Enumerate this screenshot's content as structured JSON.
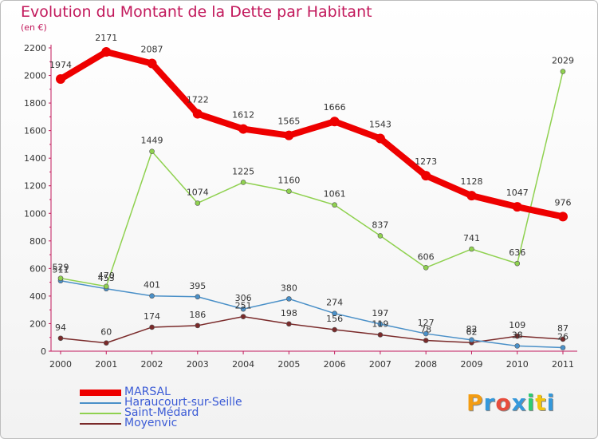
{
  "header": {
    "title": "Evolution du Montant de la Dette par Habitant",
    "unit": "(en €)"
  },
  "logo": {
    "text": "Proxiti",
    "colors": [
      "#f39c12",
      "#3498db",
      "#e74c3c",
      "#3498db",
      "#2ecc71",
      "#f1c40f",
      "#3498db"
    ]
  },
  "chart_data": {
    "type": "line",
    "title": "Evolution du Montant de la Dette par Habitant",
    "ylabel": "(en €)",
    "xlabel": "",
    "ylim": [
      0,
      2200
    ],
    "yticks": [
      0,
      200,
      400,
      600,
      800,
      1000,
      1200,
      1400,
      1600,
      1800,
      2000,
      2200
    ],
    "x": [
      "2000",
      "2001",
      "2002",
      "2003",
      "2004",
      "2005",
      "2006",
      "2007",
      "2008",
      "2009",
      "2010",
      "2011"
    ],
    "grid": false,
    "legend_position": "bottom-left",
    "series": [
      {
        "name": "MARSAL",
        "color": "#ee0000",
        "values": [
          1974,
          2171,
          2087,
          1722,
          1612,
          1565,
          1666,
          1543,
          1273,
          1128,
          1047,
          976
        ],
        "labels": [
          "1974",
          "2171",
          "2087",
          "1722",
          "1612",
          "1565",
          "1666",
          "1543",
          "1273",
          "1128",
          "1047",
          "976"
        ]
      },
      {
        "name": "Haraucourt-sur-Seille",
        "color": "#4a90c8",
        "values": [
          511,
          453,
          401,
          395,
          306,
          380,
          274,
          197,
          127,
          82,
          38,
          26
        ],
        "labels": [
          "511",
          "453",
          "401",
          "395",
          "306",
          "380",
          "274",
          "197",
          "127",
          "82",
          "38",
          "26"
        ]
      },
      {
        "name": "Saint-Médard",
        "color": "#8fd14f",
        "values": [
          529,
          470,
          1449,
          1074,
          1225,
          1160,
          1061,
          837,
          606,
          741,
          636,
          2029
        ],
        "labels": [
          "529",
          "470",
          "1449",
          "1074",
          "1225",
          "1160",
          "1061",
          "837",
          "606",
          "741",
          "636",
          "2029"
        ]
      },
      {
        "name": "Moyenvic",
        "color": "#7a2a2a",
        "values": [
          94,
          60,
          174,
          186,
          251,
          198,
          156,
          119,
          78,
          62,
          109,
          87
        ],
        "labels": [
          "94",
          "60",
          "174",
          "186",
          "251",
          "198",
          "156",
          "119",
          "78",
          "62",
          "109",
          "87"
        ]
      }
    ]
  }
}
